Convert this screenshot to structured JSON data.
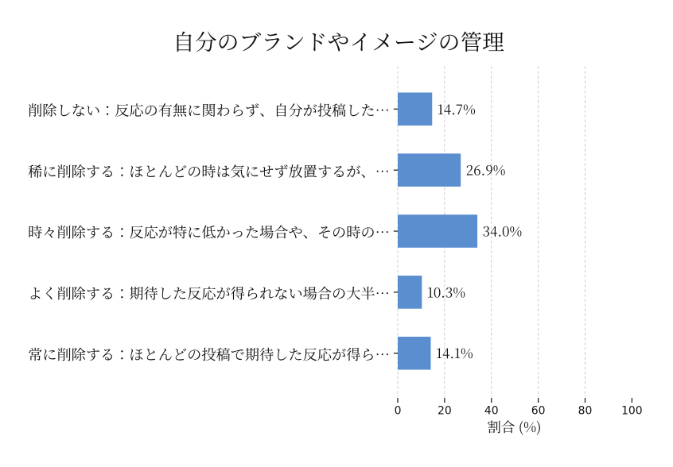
{
  "page": {
    "background": "#ffffff"
  },
  "chart_data": {
    "type": "bar",
    "orientation": "horizontal",
    "title": "自分のブランドやイメージの管理",
    "categories": [
      "削除しない：反応の有無に関わらず、自分が投稿した…",
      "稀に削除する：ほとんどの時は気にせず放置するが、…",
      "時々削除する：反応が特に低かった場合や、その時の…",
      "よく削除する：期待した反応が得られない場合の大半…",
      "常に削除する：ほとんどの投稿で期待した反応が得ら…"
    ],
    "values": [
      14.7,
      26.9,
      34.0,
      10.3,
      14.1
    ],
    "value_labels": [
      "14.7%",
      "26.9%",
      "34.0%",
      "10.3%",
      "14.1%"
    ],
    "xlabel": "割合 (%)",
    "xtick_labels": [
      "0",
      "20",
      "40",
      "60",
      "80",
      "100"
    ],
    "xticks": [
      0,
      20,
      40,
      60,
      80,
      100
    ],
    "xlim": [
      0,
      100
    ],
    "grid": {
      "axis": "x",
      "style": "dashed",
      "ticks_with_gridlines": [
        0,
        20,
        40,
        60,
        80
      ]
    },
    "legend": "none",
    "colors": {
      "bar": "#5a8ecf",
      "grid": "#cccccc",
      "tick": "#111111",
      "text": "#111111",
      "background": "#ffffff"
    }
  }
}
